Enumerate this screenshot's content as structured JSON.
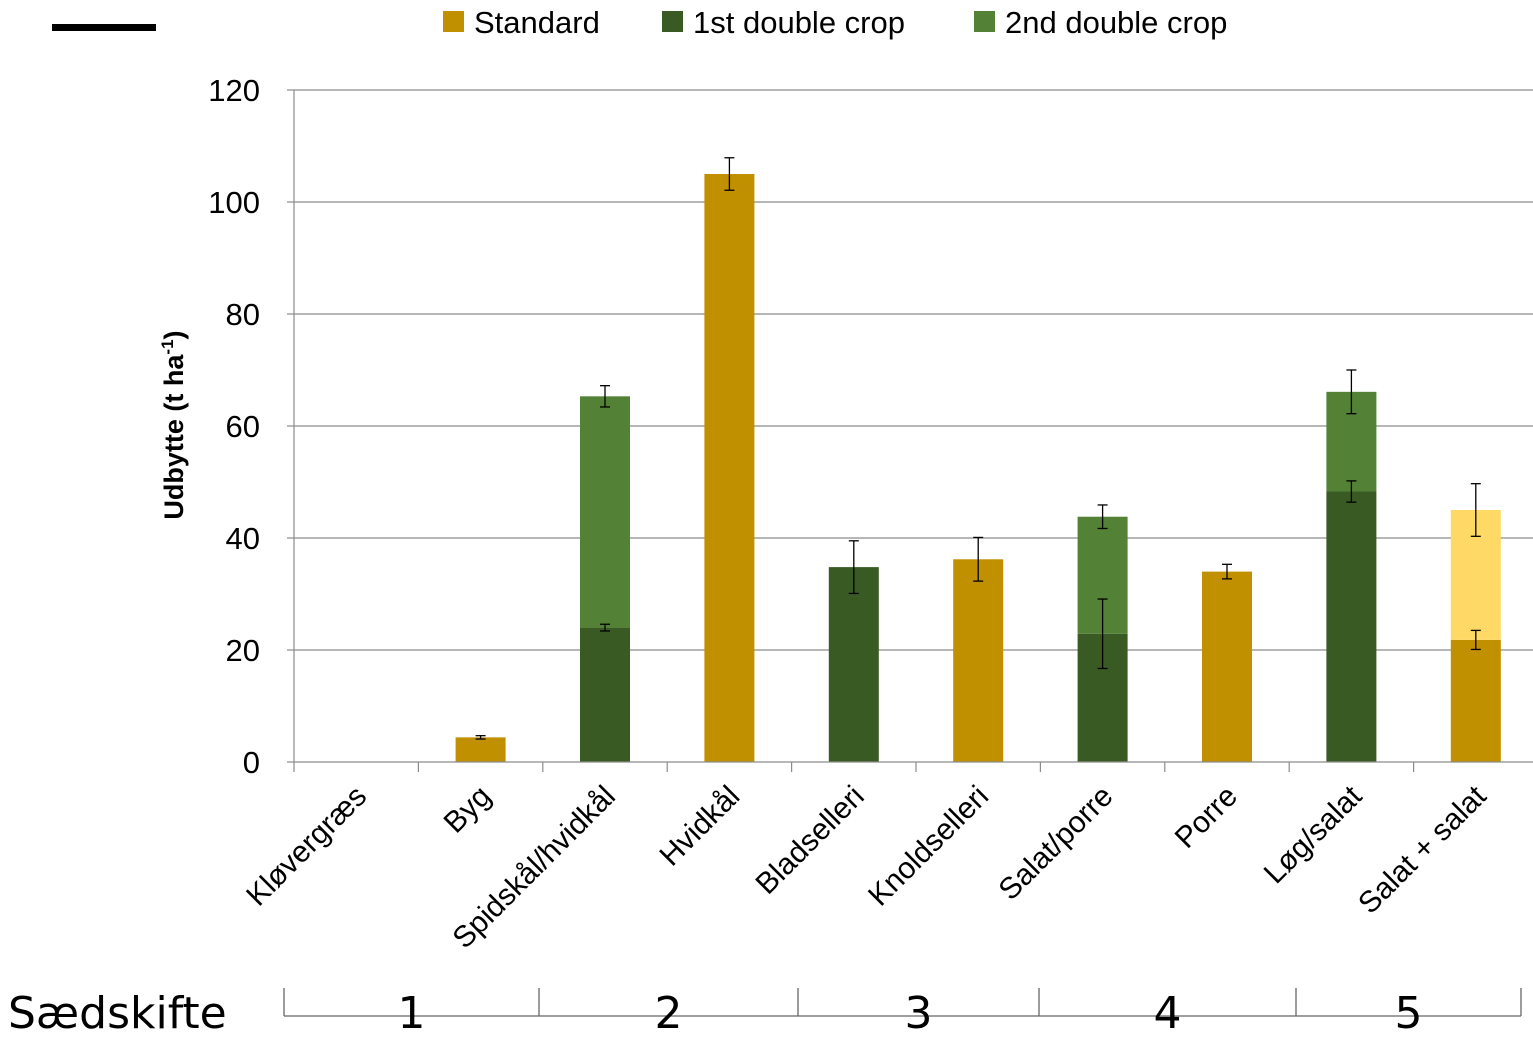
{
  "chart_data": {
    "type": "bar",
    "stacked": true,
    "ylabel": "Udbytte (t ha",
    "ylabel_superscript": "-1",
    "ylabel_close": ")",
    "ylim": [
      0,
      120
    ],
    "yticks": [
      "0",
      "20",
      "40",
      "60",
      "80",
      "100",
      "120"
    ],
    "grid": true,
    "legend_position": "top",
    "categories": [
      "Kløvergræs",
      "Byg",
      "Spidskål/hvidkål",
      "Hvidkål",
      "Bladselleri",
      "Knoldselleri",
      "Salat/porre",
      "Porre",
      "Løg/salat",
      "Salat + salat"
    ],
    "series": [
      {
        "name": "Standard",
        "color": "#C09000",
        "values": [
          0,
          4.4,
          0,
          105,
          0,
          36.2,
          0,
          34,
          0,
          21.8
        ],
        "errors": [
          0,
          0.3,
          0,
          2.9,
          0,
          3.9,
          0,
          1.3,
          0,
          1.7
        ]
      },
      {
        "name": "1st double crop",
        "color": "#3A5A24",
        "values": [
          0,
          0,
          24,
          0,
          34.8,
          0,
          22.9,
          0,
          48.3,
          0
        ],
        "errors": [
          0,
          0,
          0.6,
          0,
          4.7,
          0,
          6.2,
          0,
          1.9,
          0
        ]
      },
      {
        "name": "2nd double crop",
        "color": "#538135",
        "values": [
          0,
          0,
          41.3,
          0,
          0,
          0,
          20.9,
          0,
          17.8,
          0
        ],
        "errors": [
          0,
          0,
          1.9,
          0,
          0,
          0,
          2.1,
          0,
          3.9,
          0
        ]
      },
      {
        "color": "#FFD966",
        "values": [
          0,
          0,
          0,
          0,
          0,
          0,
          0,
          0,
          0,
          23.2
        ],
        "errors": [
          0,
          0,
          0,
          0,
          0,
          0,
          0,
          0,
          0,
          4.7
        ]
      }
    ],
    "rotation_label": "Sædskifte",
    "rotation_groups": [
      {
        "label": "1",
        "span": [
          0,
          1
        ]
      },
      {
        "label": "2",
        "span": [
          2,
          3
        ]
      },
      {
        "label": "3",
        "span": [
          4,
          5
        ]
      },
      {
        "label": "4",
        "span": [
          6,
          7
        ]
      },
      {
        "label": "5",
        "span": [
          8,
          9
        ]
      }
    ]
  }
}
